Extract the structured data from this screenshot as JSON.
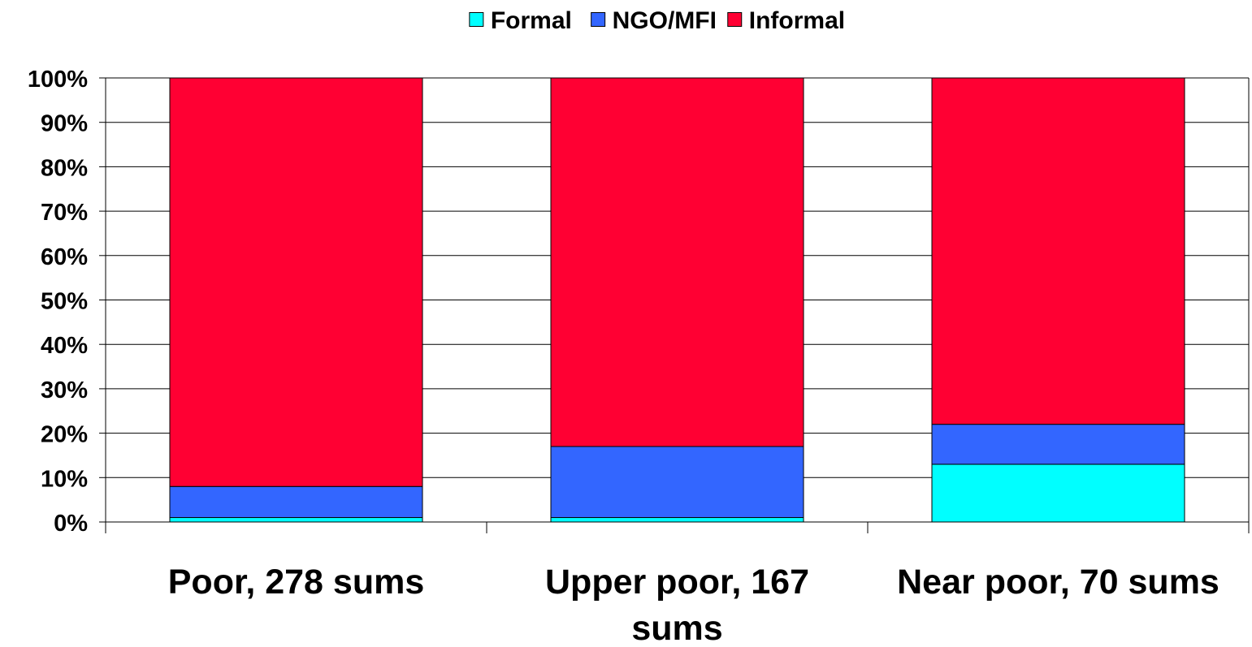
{
  "chart_data": {
    "type": "bar",
    "stacked": true,
    "categories": [
      "Poor, 278 sums",
      "Upper poor, 167 sums",
      "Near poor, 70 sums"
    ],
    "series": [
      {
        "name": "Formal",
        "color": "#00FFFF",
        "values": [
          1,
          1,
          13
        ]
      },
      {
        "name": "NGO/MFI",
        "color": "#3366FF",
        "values": [
          7,
          16,
          9
        ]
      },
      {
        "name": "Informal",
        "color": "#FF0033",
        "values": [
          92,
          83,
          78
        ]
      }
    ],
    "yticks": [
      "0%",
      "10%",
      "20%",
      "30%",
      "40%",
      "50%",
      "60%",
      "70%",
      "80%",
      "90%",
      "100%"
    ],
    "ylim": [
      0,
      100
    ],
    "grid": true,
    "legend": "top-center"
  }
}
